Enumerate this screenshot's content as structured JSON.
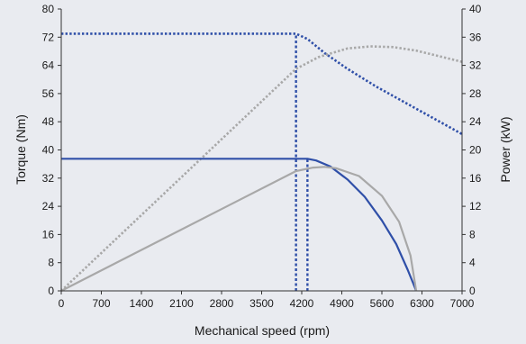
{
  "chart_data": {
    "type": "line",
    "xlabel": "Mechanical speed (rpm)",
    "ylabel": "Torque (Nm)",
    "y2label": "Power (kW)",
    "xlim": [
      0,
      7000
    ],
    "ylim": [
      0,
      80
    ],
    "y2lim": [
      0,
      40
    ],
    "xticks": [
      0,
      700,
      1400,
      2100,
      2800,
      3500,
      4200,
      4900,
      5600,
      6300,
      7000
    ],
    "yticks": [
      0,
      8,
      16,
      24,
      32,
      40,
      48,
      56,
      64,
      72,
      80
    ],
    "y2ticks": [
      0,
      4,
      8,
      12,
      16,
      20,
      24,
      28,
      32,
      36,
      40
    ],
    "grid": false,
    "colors": {
      "dark_blue": "#2f4fa8",
      "gray": "#a8a8a8",
      "axis": "#333333"
    },
    "series": [
      {
        "style": "dotted",
        "color": "dark_blue",
        "axis": "torque",
        "x": [
          0,
          4100,
          4300,
          4600,
          5000,
          5500,
          6000,
          6500,
          7000
        ],
        "y": [
          73,
          73,
          71.5,
          67.5,
          63,
          58,
          53.5,
          49,
          44.5
        ]
      },
      {
        "style": "dotted",
        "color": "gray",
        "axis": "power",
        "x": [
          0,
          4100,
          4500,
          5000,
          5400,
          5800,
          6200,
          6600,
          7000
        ],
        "y": [
          0,
          31.5,
          33.2,
          34.4,
          34.7,
          34.6,
          34.1,
          33.3,
          32.5
        ]
      },
      {
        "style": "solid",
        "color": "dark_blue",
        "axis": "torque",
        "x": [
          0,
          4300,
          4450,
          4700,
          5000,
          5300,
          5600,
          5850,
          6050,
          6150,
          6200
        ],
        "y": [
          37.5,
          37.5,
          37.0,
          35.3,
          31.6,
          26.7,
          20.0,
          13.3,
          6.0,
          2.0,
          0
        ]
      },
      {
        "style": "solid",
        "color": "gray",
        "axis": "power",
        "x": [
          0,
          4100,
          4400,
          4600,
          4800,
          5200,
          5600,
          5900,
          6100,
          6200
        ],
        "y": [
          0,
          17.0,
          17.5,
          17.6,
          17.4,
          16.3,
          13.5,
          9.8,
          5.0,
          0
        ]
      }
    ],
    "reference_lines": [
      {
        "style": "dashed",
        "color": "dark_blue",
        "x": 4100,
        "y_from": 0,
        "y_to": 73
      },
      {
        "style": "dashed",
        "color": "dark_blue",
        "x": 4300,
        "y_from": 0,
        "y_to": 37.5
      }
    ]
  }
}
